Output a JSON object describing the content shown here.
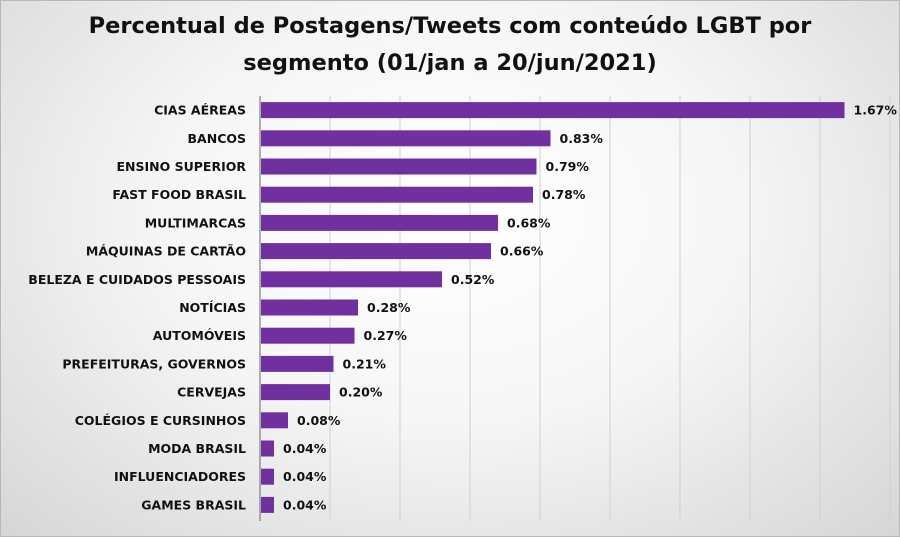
{
  "chart_data": {
    "type": "bar",
    "orientation": "horizontal",
    "title": "Percentual de Postagens/Tweets com conteúdo LGBT por\nsegmento (01/jan a 20/jun/2021)",
    "categories": [
      "CIAS AÉREAS",
      "BANCOS",
      "ENSINO SUPERIOR",
      "FAST FOOD BRASIL",
      "MULTIMARCAS",
      "MÁQUINAS DE CARTÃO",
      "BELEZA E CUIDADOS PESSOAIS",
      "NOTÍCIAS",
      "AUTOMÓVEIS",
      "PREFEITURAS, GOVERNOS",
      "CERVEJAS",
      "COLÉGIOS E CURSINHOS",
      "MODA BRASIL",
      "INFLUENCIADORES",
      "GAMES BRASIL"
    ],
    "values": [
      1.67,
      0.83,
      0.79,
      0.78,
      0.68,
      0.66,
      0.52,
      0.28,
      0.27,
      0.21,
      0.2,
      0.08,
      0.04,
      0.04,
      0.04
    ],
    "data_labels": [
      "1.67%",
      "0.83%",
      "0.79%",
      "0.78%",
      "0.68%",
      "0.66%",
      "0.52%",
      "0.28%",
      "0.27%",
      "0.21%",
      "0.20%",
      "0.08%",
      "0.04%",
      "0.04%",
      "0.04%"
    ],
    "xlim": [
      0,
      1.8
    ],
    "grid": true,
    "bar_color": "#7030a0",
    "grid_color": "#d0d0d0"
  }
}
